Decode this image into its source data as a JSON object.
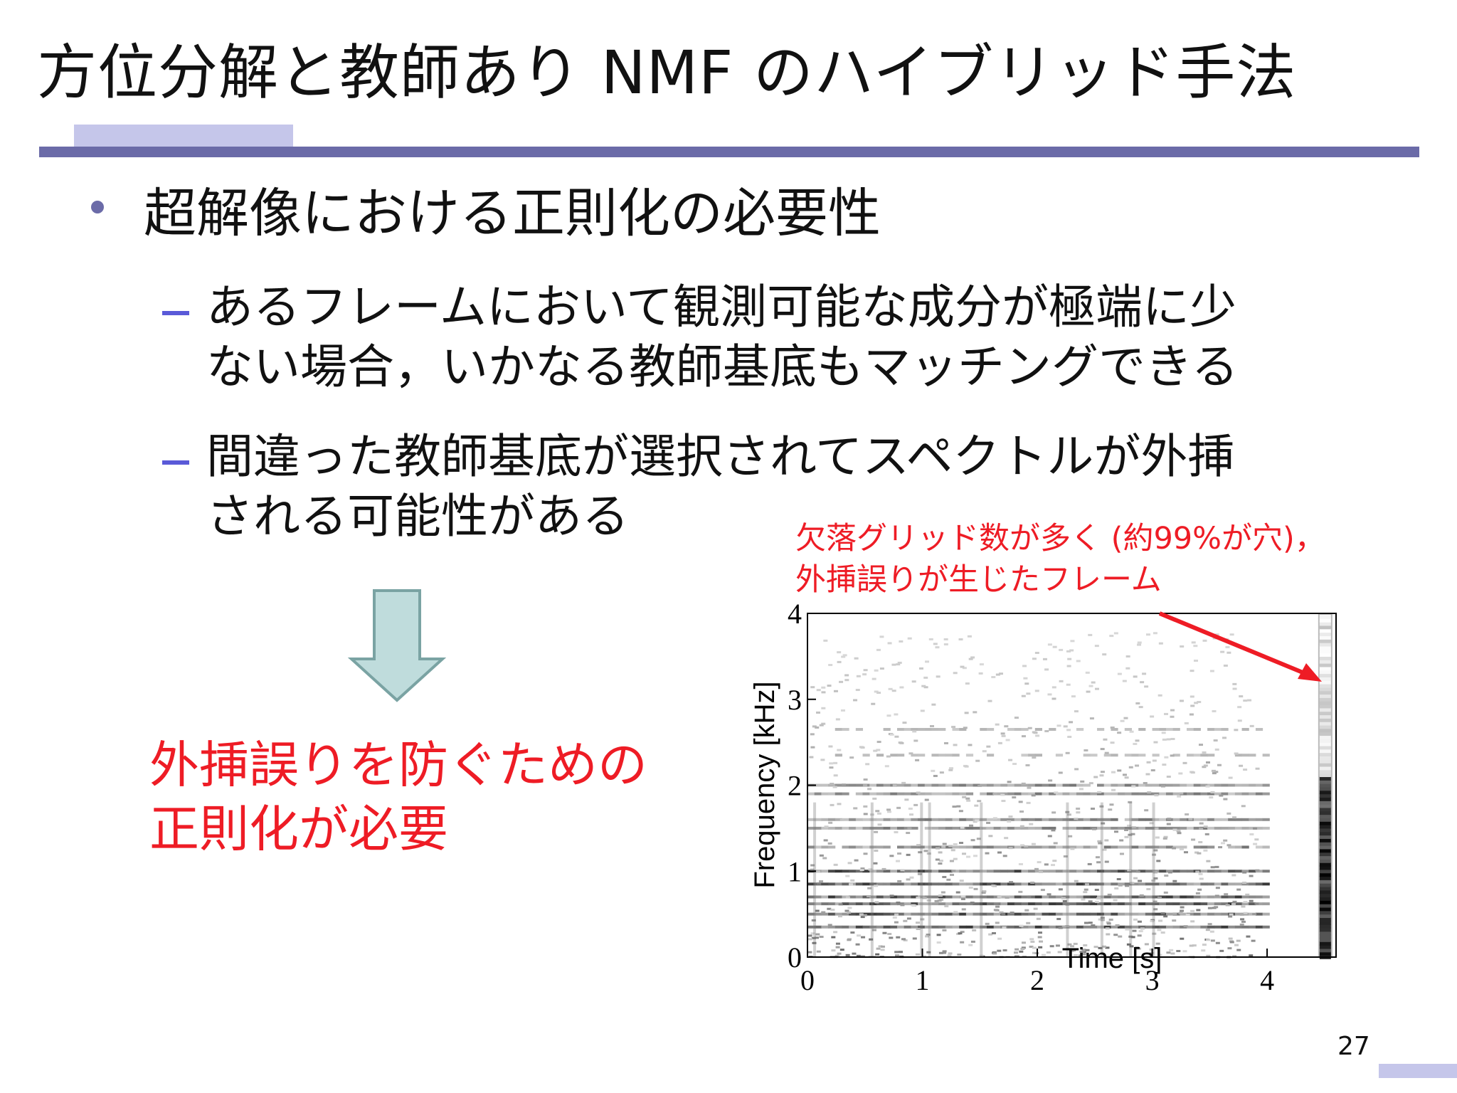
{
  "slide": {
    "title": "方位分解と教師あり NMF のハイブリッド手法",
    "bullet": "超解像における正則化の必要性",
    "sub1": [
      "あるフレームにおいて観測可能な成分が極端に少",
      "ない場合，いかなる教師基底もマッチングできる"
    ],
    "sub2": [
      "間違った教師基底が選択されてスペクトルが外挿",
      "される可能性がある"
    ],
    "conclusion": [
      "外挿誤りを防ぐための",
      "正則化が必要"
    ],
    "annotation": [
      "欠落グリッド数が多く (約99%が穴)，",
      "外挿誤りが生じたフレーム"
    ],
    "page_number": "27"
  },
  "colors": {
    "accent": "#6b6ba8",
    "accent_light": "#c5c6ea",
    "dash": "#5a5ad8",
    "emphasis": "#ee1c25",
    "arrow_fill": "#bfdcdc",
    "arrow_stroke": "#7aa3a3"
  },
  "icons": {
    "bullet": "bullet-dot",
    "arrow": "down-arrow-icon"
  },
  "chart_data": {
    "type": "heatmap",
    "title": "",
    "xlabel": "Time [s]",
    "ylabel": "Frequency [kHz]",
    "xlim": [
      0,
      4.6
    ],
    "ylim": [
      0,
      4
    ],
    "xticks": [
      "0",
      "1",
      "2",
      "3",
      "4"
    ],
    "yticks": [
      "0",
      "1",
      "2",
      "3",
      "4"
    ],
    "colormap": "grayscale (white = low, black = high)",
    "description_values": {
      "harmonic_bands_khz": [
        0.35,
        0.5,
        0.62,
        0.7,
        0.85,
        1.0,
        1.28,
        1.5,
        1.6,
        1.9,
        2.0,
        2.35,
        2.65
      ],
      "highlighted_frame_time_s": 4.5
    }
  }
}
